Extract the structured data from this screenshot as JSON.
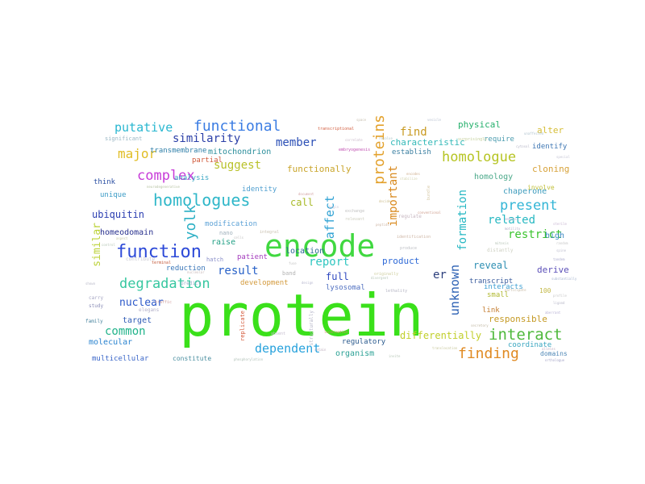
{
  "words": [
    {
      "text": "protein",
      "color": "#3ae01a"
    },
    {
      "text": "encode",
      "color": "#40d840"
    },
    {
      "text": "function",
      "color": "#2d4ad8"
    },
    {
      "text": "homologues",
      "color": "#2fb7c9"
    },
    {
      "text": "degradation",
      "color": "#36c7a0"
    },
    {
      "text": "functional",
      "color": "#3a7ce3"
    },
    {
      "text": "interact",
      "color": "#4fb93c"
    },
    {
      "text": "finding",
      "color": "#e08a22"
    },
    {
      "text": "homologue",
      "color": "#b6c423"
    },
    {
      "text": "present",
      "color": "#33b5d6"
    },
    {
      "text": "proteins",
      "color": "#e3a12c"
    },
    {
      "text": "complex",
      "color": "#c73bd8"
    },
    {
      "text": "yolk",
      "color": "#2db0c5"
    },
    {
      "text": "similarity",
      "color": "#2b3fa7"
    },
    {
      "text": "putative",
      "color": "#29b7d0"
    },
    {
      "text": "major",
      "color": "#e0bd24"
    },
    {
      "text": "dependent",
      "color": "#28a2dc"
    },
    {
      "text": "common",
      "color": "#21b38a"
    },
    {
      "text": "unknown",
      "color": "#2a5fb3"
    },
    {
      "text": "suggest",
      "color": "#b9c12a"
    },
    {
      "text": "member",
      "color": "#2b4fb6"
    },
    {
      "text": "result",
      "color": "#2962c8"
    },
    {
      "text": "report",
      "color": "#2fc6c0"
    },
    {
      "text": "related",
      "color": "#27b8c2"
    },
    {
      "text": "restrict",
      "color": "#3cc42f"
    },
    {
      "text": "affect",
      "color": "#2fa2d4"
    },
    {
      "text": "formation",
      "color": "#29b8c4"
    },
    {
      "text": "important",
      "color": "#d98a1f"
    },
    {
      "text": "ubiquitin",
      "color": "#2b3eb1"
    },
    {
      "text": "similar",
      "color": "#bcd23a"
    },
    {
      "text": "nuclear",
      "color": "#2b58c9"
    },
    {
      "text": "find",
      "color": "#c89a21"
    },
    {
      "text": "er",
      "color": "#2b3e7c"
    },
    {
      "text": "differentially",
      "color": "#c1cf2a"
    },
    {
      "text": "characteristic",
      "color": "#34b9b8"
    },
    {
      "text": "physical",
      "color": "#25b06c"
    },
    {
      "text": "call",
      "color": "#a7b926"
    },
    {
      "text": "full",
      "color": "#2f49c0"
    },
    {
      "text": "homeodomain",
      "color": "#29318e"
    },
    {
      "text": "responsible",
      "color": "#c59a25"
    },
    {
      "text": "reveal",
      "color": "#2e8fb3"
    },
    {
      "text": "product",
      "color": "#2f6ad7"
    },
    {
      "text": "mitochondrion",
      "color": "#2b8e9b"
    },
    {
      "text": "functionally",
      "color": "#c9a52b"
    },
    {
      "text": "raise",
      "color": "#25a187"
    },
    {
      "text": "location",
      "color": "#2e6b94"
    },
    {
      "text": "target",
      "color": "#2f5bb5"
    },
    {
      "text": "molecular",
      "color": "#2a83cf"
    },
    {
      "text": "organism",
      "color": "#2ba195"
    },
    {
      "text": "regulatory",
      "color": "#29598d"
    },
    {
      "text": "cloning",
      "color": "#d7a23a"
    },
    {
      "text": "alter",
      "color": "#d6be37"
    },
    {
      "text": "high",
      "color": "#3d89c3"
    },
    {
      "text": "derive",
      "color": "#5b4fb8"
    },
    {
      "text": "patient",
      "color": "#a33bbd"
    },
    {
      "text": "development",
      "color": "#d39a3c"
    },
    {
      "text": "homology",
      "color": "#4ba98a"
    },
    {
      "text": "chaperone",
      "color": "#3d9bbc"
    },
    {
      "text": "establish",
      "color": "#3b7fa1"
    },
    {
      "text": "transmembrane",
      "color": "#2f7fa8"
    },
    {
      "text": "identify",
      "color": "#3f77b3"
    },
    {
      "text": "require",
      "color": "#4b9caf"
    },
    {
      "text": "partial",
      "color": "#d05a3b"
    },
    {
      "text": "unique",
      "color": "#3b9bc6"
    },
    {
      "text": "think",
      "color": "#2b4fa2"
    },
    {
      "text": "analysis",
      "color": "#3ba6c4"
    },
    {
      "text": "interacts",
      "color": "#3e9fd3"
    },
    {
      "text": "identity",
      "color": "#4f9fd0"
    },
    {
      "text": "modification",
      "color": "#5da2d6"
    },
    {
      "text": "reduction",
      "color": "#3a76b8"
    },
    {
      "text": "lysosomal",
      "color": "#4f6fc0"
    },
    {
      "text": "transcript",
      "color": "#3d5f9f"
    },
    {
      "text": "small",
      "color": "#b0b82f"
    },
    {
      "text": "link",
      "color": "#c37b2e"
    },
    {
      "text": "coordinate",
      "color": "#3aa6c0"
    },
    {
      "text": "multicellular",
      "color": "#3a66c8"
    },
    {
      "text": "constitute",
      "color": "#4b8fa0"
    },
    {
      "text": "domains",
      "color": "#4d86b5"
    },
    {
      "text": "involve",
      "color": "#c3c13d"
    },
    {
      "text": "significant",
      "color": "#9ab7c4"
    },
    {
      "text": "hatch",
      "color": "#8a8fc9"
    },
    {
      "text": "nano",
      "color": "#9fb0bb"
    },
    {
      "text": "band",
      "color": "#b3b3b3"
    },
    {
      "text": "100",
      "color": "#c2b846"
    },
    {
      "text": "carry",
      "color": "#a6a6c3"
    },
    {
      "text": "study",
      "color": "#8c8fb8"
    },
    {
      "text": "elegans",
      "color": "#b3b0c9"
    },
    {
      "text": "family",
      "color": "#4b86a0"
    },
    {
      "text": "replicate",
      "color": "#d45a3b"
    },
    {
      "text": "structurally",
      "color": "#b3b3c6"
    },
    {
      "text": "transcriptional",
      "color": "#d15a3b"
    },
    {
      "text": "embryogenesis",
      "color": "#c14fb1"
    },
    {
      "text": "integral",
      "color": "#c9c1b0"
    },
    {
      "text": "relevant",
      "color": "#cfcfc0"
    },
    {
      "text": "contribute",
      "color": "#c8c8d1"
    },
    {
      "text": "predict",
      "color": "#9bb0c9"
    },
    {
      "text": "absent",
      "color": "#c4bccf"
    },
    {
      "text": "regulate",
      "color": "#c7b7c1"
    },
    {
      "text": "identification",
      "color": "#cfb7a6"
    },
    {
      "text": "produce",
      "color": "#bfc1c6"
    },
    {
      "text": "distantly",
      "color": "#cfd1c3"
    },
    {
      "text": "exchange",
      "color": "#c2c2c2"
    },
    {
      "text": "originally",
      "color": "#cfcf9f"
    },
    {
      "text": "lethality",
      "color": "#b5b5c3"
    },
    {
      "text": "surprisingly",
      "color": "#c3cf9a"
    },
    {
      "text": "stabilize",
      "color": "#d3d3b0"
    },
    {
      "text": "cytosol",
      "color": "#b7b7c7"
    },
    {
      "text": "unaffected",
      "color": "#b0c3cf"
    },
    {
      "text": "special",
      "color": "#c5c5d5"
    },
    {
      "text": "participate",
      "color": "#c8b9a4"
    },
    {
      "text": "localisation",
      "color": "#d28a6a"
    },
    {
      "text": "neurodegenerative",
      "color": "#b5c2a1"
    },
    {
      "text": "terminal",
      "color": "#c45a3b"
    },
    {
      "text": "alleles",
      "color": "#c3b0c3"
    },
    {
      "text": "orthologue",
      "color": "#a7a7c8"
    },
    {
      "text": "aberrant",
      "color": "#b7b0d4"
    },
    {
      "text": "secretory",
      "color": "#c0b7a1"
    },
    {
      "text": "decide",
      "color": "#cdbf8f"
    },
    {
      "text": "phosphorylation",
      "color": "#b0c1b7"
    },
    {
      "text": "embryos",
      "color": "#bcb3d1"
    },
    {
      "text": "translocation",
      "color": "#c9c99f"
    },
    {
      "text": "sterile",
      "color": "#c6b3d0"
    },
    {
      "text": "conventional",
      "color": "#cf9f8f"
    },
    {
      "text": "motility",
      "color": "#b5b0c8"
    },
    {
      "text": "substantially",
      "color": "#a8b6d0"
    },
    {
      "text": "random",
      "color": "#c8c8c8"
    },
    {
      "text": "ligand",
      "color": "#b9b9c9"
    },
    {
      "text": "profile",
      "color": "#c6c6c6"
    },
    {
      "text": "tandem",
      "color": "#b0b0d0"
    },
    {
      "text": "spine",
      "color": "#c0c0d0"
    },
    {
      "text": "control",
      "color": "#b6c6b6"
    },
    {
      "text": "aspect",
      "color": "#c7c7a7"
    },
    {
      "text": "design",
      "color": "#b8b8cf"
    },
    {
      "text": "bundle",
      "color": "#d4c6a0"
    },
    {
      "text": "mitosis",
      "color": "#b3c2b3"
    },
    {
      "text": "invite",
      "color": "#b7c7b7"
    },
    {
      "text": "correlate",
      "color": "#c9b9c9"
    },
    {
      "text": "peptide",
      "color": "#cfb8a8"
    },
    {
      "text": "document",
      "color": "#d3a3a3"
    },
    {
      "text": "begin",
      "color": "#c8c8d8"
    },
    {
      "text": "encodes",
      "color": "#d0b090"
    },
    {
      "text": "resolve",
      "color": "#b0c8c8"
    },
    {
      "text": "cells",
      "color": "#c0c0c0"
    },
    {
      "text": "traffic",
      "color": "#d0a0a0"
    },
    {
      "text": "fuse",
      "color": "#c3c3c3"
    },
    {
      "text": "nucleolar",
      "color": "#c8b8b8"
    },
    {
      "text": "divergent",
      "color": "#b8c8b8"
    },
    {
      "text": "retain",
      "color": "#c0b0c0"
    },
    {
      "text": "shown",
      "color": "#b8b8c8"
    },
    {
      "text": "space",
      "color": "#c8c0b0"
    },
    {
      "text": "vesicle",
      "color": "#b8c0d0"
    }
  ]
}
